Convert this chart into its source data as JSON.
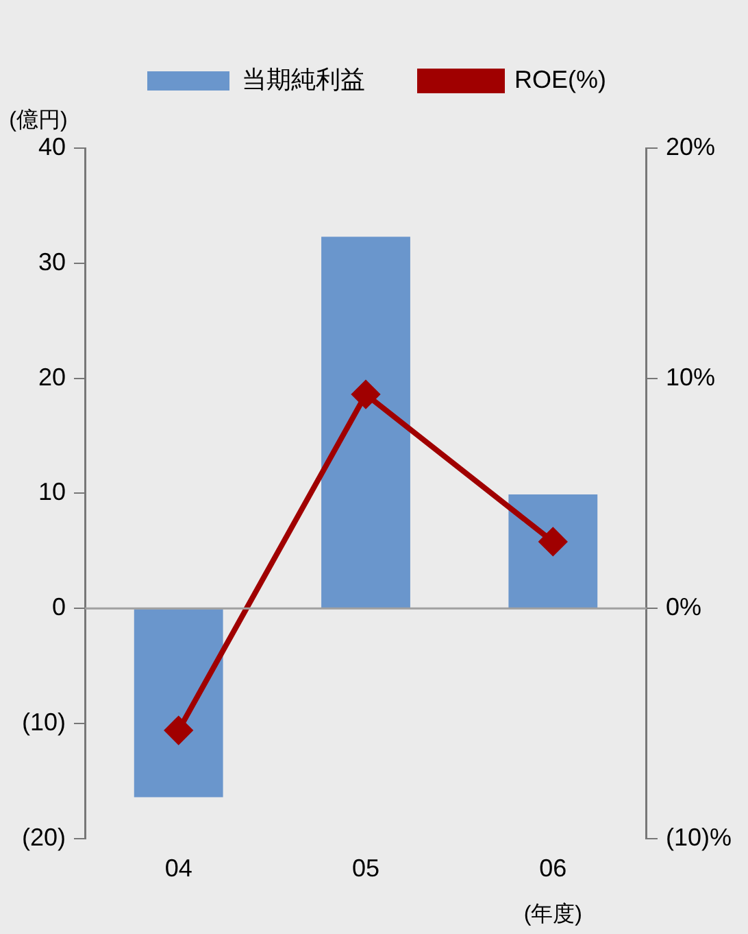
{
  "chart_data": {
    "type": "bar",
    "categories": [
      "04",
      "05",
      "06"
    ],
    "xlabel": "(年度)",
    "ylabel": "(億円)",
    "series": [
      {
        "name": "当期純利益",
        "color": "#6a96cc",
        "values": [
          -16.4,
          32.3,
          9.9
        ]
      },
      {
        "name": "ROE(%)",
        "type": "line",
        "axis": "y2",
        "color": "#a00000",
        "marker": "diamond",
        "values": [
          -5.3,
          9.3,
          2.9
        ]
      }
    ],
    "ylim": [
      -20,
      40
    ],
    "yticks": [
      40,
      30,
      20,
      10,
      0,
      {
        "value": -10,
        "label": "(10)"
      },
      {
        "value": -20,
        "label": "(20)"
      }
    ],
    "y2lim": [
      -10,
      20
    ],
    "y2ticks": [
      {
        "value": 20,
        "label": "20%"
      },
      {
        "value": 10,
        "label": "10%"
      },
      {
        "value": 0,
        "label": "0%"
      },
      {
        "value": -10,
        "label": "(10)%"
      }
    ],
    "ref_lines": [
      {
        "axis": "y",
        "value": 0,
        "color": "#a0a0a0"
      }
    ],
    "grid": false,
    "legend": "top"
  }
}
